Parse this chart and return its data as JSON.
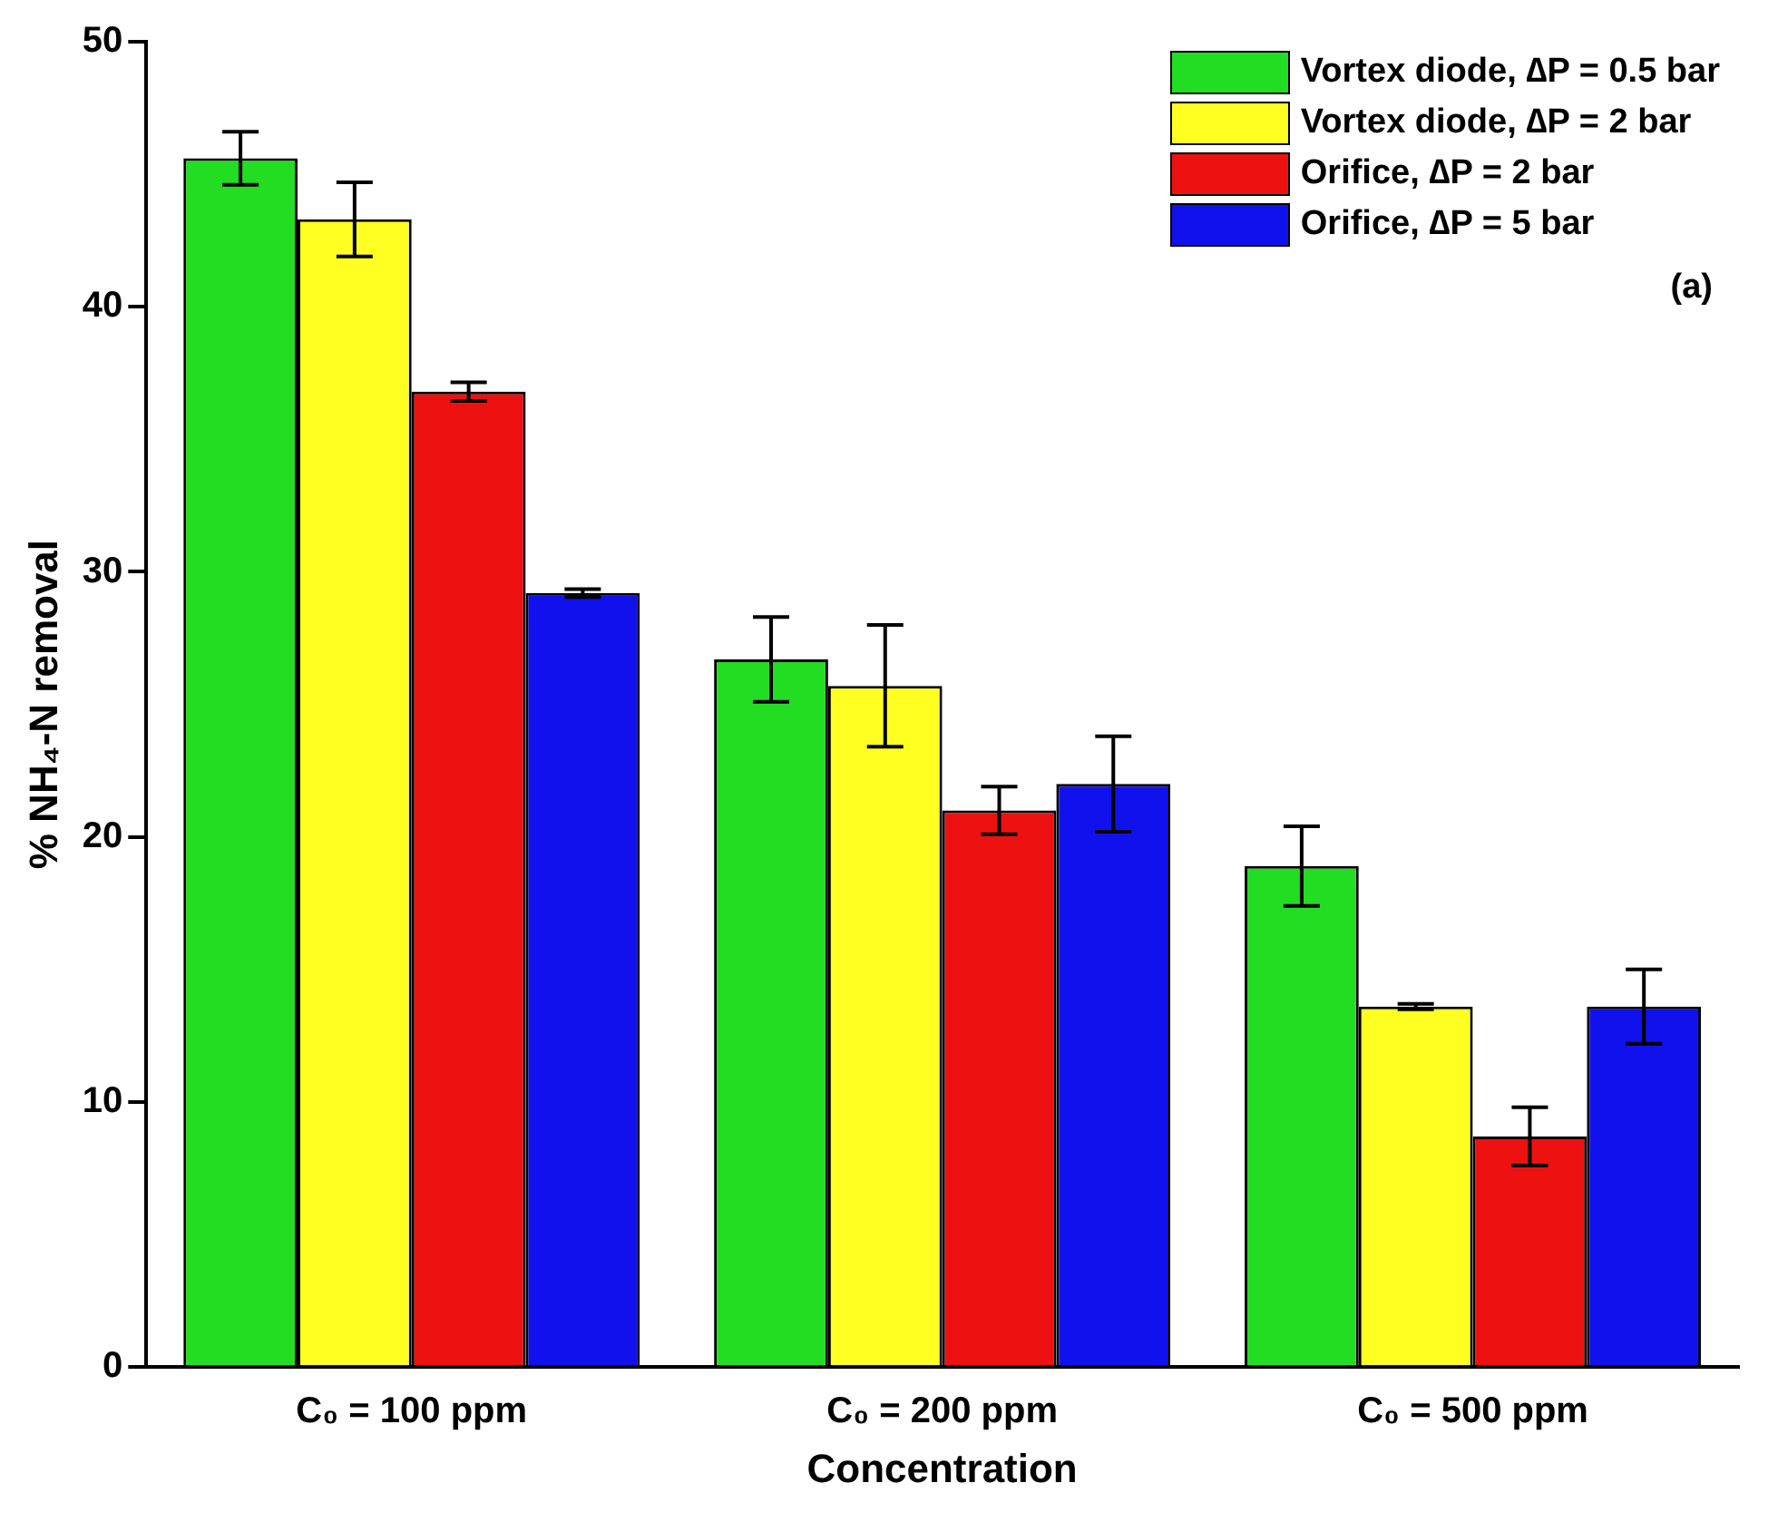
{
  "chart_data": {
    "type": "bar",
    "xlabel": "Concentration",
    "ylabel": "% NH₄-N removal",
    "categories": [
      "C₀ = 100 ppm",
      "C₀ = 200 ppm",
      "C₀ = 500 ppm"
    ],
    "series": [
      {
        "name": "Vortex diode, ∆P = 0.5 bar",
        "color": "#22dd22",
        "values": [
          45.6,
          26.7,
          18.9
        ],
        "errors": [
          1.0,
          1.6,
          1.5
        ]
      },
      {
        "name": "Vortex diode, ∆P = 2 bar",
        "color": "#ffff22",
        "values": [
          43.3,
          25.7,
          13.6
        ],
        "errors": [
          1.4,
          2.3,
          0.1
        ]
      },
      {
        "name": "Orifice, ∆P = 2 bar",
        "color": "#ee1111",
        "values": [
          36.8,
          21.0,
          8.7
        ],
        "errors": [
          0.35,
          0.9,
          1.1
        ]
      },
      {
        "name": "Orifice, ∆P = 5 bar",
        "color": "#1111ee",
        "values": [
          29.2,
          22.0,
          13.6
        ],
        "errors": [
          0.15,
          1.8,
          1.4
        ]
      }
    ],
    "ylim": [
      0,
      50
    ],
    "yticks": [
      0,
      10,
      20,
      30,
      40,
      50
    ],
    "grid": false,
    "legend": "top right",
    "annotations": [
      "(a)"
    ]
  }
}
